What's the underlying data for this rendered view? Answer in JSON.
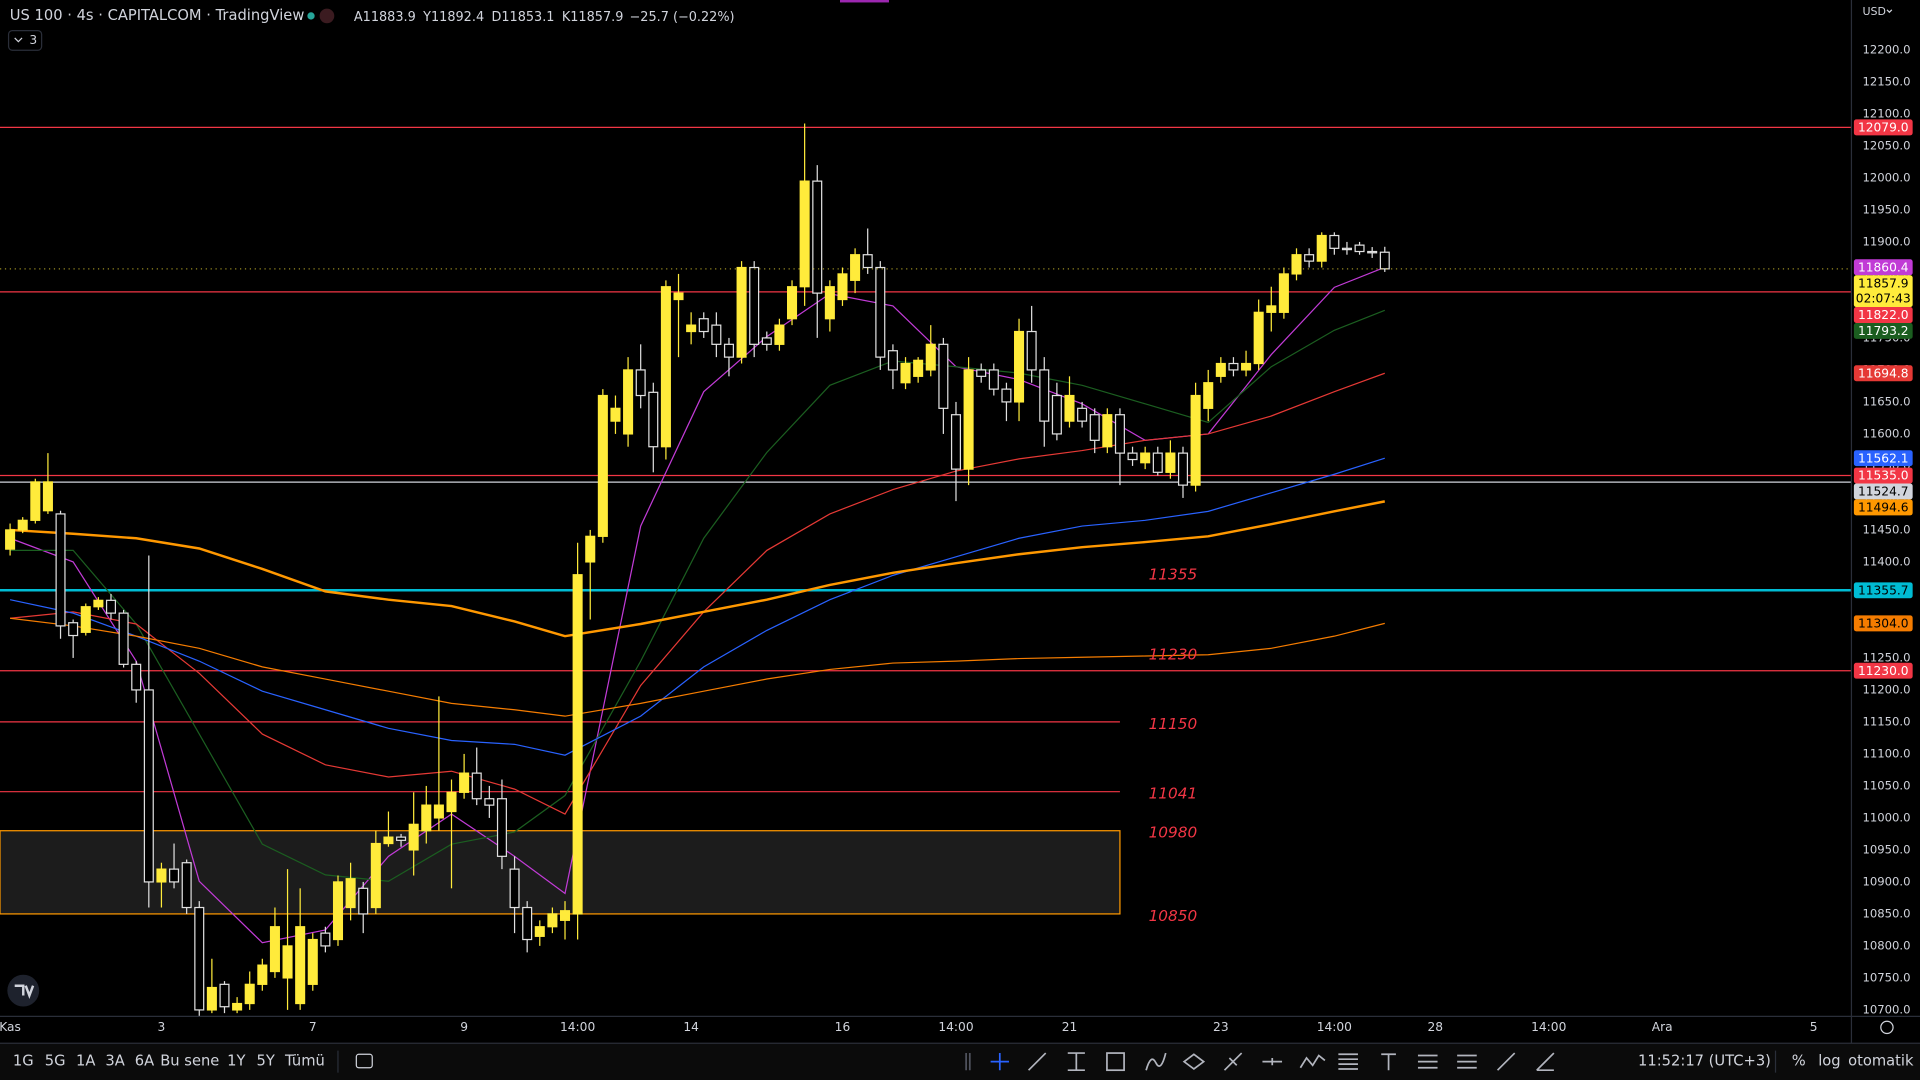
{
  "header": {
    "title": "US 100 · 4s · CAPITALCOM · TradingView",
    "ohlc_letters": [
      "A",
      "Y",
      "D",
      "K"
    ],
    "change": "−25.7 (−0.22%)",
    "indicator_count": "3",
    "currency": "USD"
  },
  "toolbar": {
    "ranges": [
      "1G",
      "5G",
      "1A",
      "3A",
      "6A",
      "Bu sene",
      "1Y",
      "5Y",
      "Tümü"
    ],
    "clock": "11:52:17 (UTC+3)",
    "scale_options": [
      "%",
      "log",
      "otomatik"
    ]
  },
  "chart_data": {
    "type": "candlestick",
    "countdown": "02:07:43",
    "xlim": [
      -0.8,
      146
    ],
    "xticks": [
      {
        "value": 0,
        "label": "Kas"
      },
      {
        "value": 12,
        "label": "3"
      },
      {
        "value": 24,
        "label": "7"
      },
      {
        "value": 36,
        "label": "9"
      },
      {
        "value": 45,
        "label": "14:00"
      },
      {
        "value": 54,
        "label": "14"
      },
      {
        "value": 66,
        "label": "16"
      },
      {
        "value": 75,
        "label": "14:00"
      },
      {
        "value": 84,
        "label": "21"
      },
      {
        "value": 96,
        "label": "23"
      },
      {
        "value": 105,
        "label": "14:00"
      },
      {
        "value": 113,
        "label": "28"
      },
      {
        "value": 122,
        "label": "14:00"
      },
      {
        "value": 131,
        "label": "Ara"
      },
      {
        "value": 143,
        "label": "5"
      }
    ],
    "ylim": [
      10690,
      12278
    ],
    "yticks": [
      {
        "value": 10700,
        "label": "10700.0"
      },
      {
        "value": 10750,
        "label": "10750.0"
      },
      {
        "value": 10800,
        "label": "10800.0"
      },
      {
        "value": 10850,
        "label": "10850.0"
      },
      {
        "value": 10900,
        "label": "10900.0"
      },
      {
        "value": 10950,
        "label": "10950.0"
      },
      {
        "value": 11000,
        "label": "11000.0"
      },
      {
        "value": 11050,
        "label": "11050.0"
      },
      {
        "value": 11100,
        "label": "11100.0"
      },
      {
        "value": 11150,
        "label": "11150.0"
      },
      {
        "value": 11200,
        "label": "11200.0"
      },
      {
        "value": 11250,
        "label": "11250.0"
      },
      {
        "value": 11300,
        "label": "11300.0"
      },
      {
        "value": 11350,
        "label": "11350.0"
      },
      {
        "value": 11400,
        "label": "11400.0"
      },
      {
        "value": 11450,
        "label": "11450.0"
      },
      {
        "value": 11500,
        "label": "11500.0"
      },
      {
        "value": 11550,
        "label": "11550.0"
      },
      {
        "value": 11600,
        "label": "11600.0"
      },
      {
        "value": 11650,
        "label": "11650.0"
      },
      {
        "value": 11700,
        "label": "11700.0"
      },
      {
        "value": 11750,
        "label": "11750.0"
      },
      {
        "value": 11800,
        "label": "11800.0"
      },
      {
        "value": 11850,
        "label": "11850.0"
      },
      {
        "value": 11900,
        "label": "11900.0"
      },
      {
        "value": 11950,
        "label": "11950.0"
      },
      {
        "value": 12000,
        "label": "12000.0"
      },
      {
        "value": 12050,
        "label": "12050.0"
      },
      {
        "value": 12100,
        "label": "12100.0"
      },
      {
        "value": 12150,
        "label": "12150.0"
      },
      {
        "value": 12200,
        "label": "12200.0"
      }
    ],
    "up_color": "#ffeb3b",
    "down_color": "#e0e0e0",
    "ohlc": [
      [
        11420,
        11460,
        11410,
        11450
      ],
      [
        11450,
        11470,
        11445,
        11465
      ],
      [
        11465,
        11530,
        11460,
        11525
      ],
      [
        11480,
        11570,
        11475,
        11525
      ],
      [
        11475,
        11480,
        11280,
        11300
      ],
      [
        11305,
        11310,
        11250,
        11285
      ],
      [
        11290,
        11335,
        11285,
        11330
      ],
      [
        11330,
        11345,
        11325,
        11340
      ],
      [
        11340,
        11350,
        11310,
        11320
      ],
      [
        11320,
        11325,
        11235,
        11240
      ],
      [
        11240,
        11245,
        11180,
        11200
      ],
      [
        11200,
        11410,
        10860,
        10900
      ],
      [
        10900,
        10930,
        10860,
        10920
      ],
      [
        10920,
        10960,
        10890,
        10900
      ],
      [
        10930,
        10935,
        10850,
        10860
      ],
      [
        10860,
        10870,
        10690,
        10700
      ],
      [
        10700,
        10780,
        10695,
        10735
      ],
      [
        10740,
        10745,
        10695,
        10705
      ],
      [
        10700,
        10720,
        10695,
        10710
      ],
      [
        10710,
        10760,
        10700,
        10740
      ],
      [
        10740,
        10780,
        10730,
        10770
      ],
      [
        10760,
        10860,
        10750,
        10830
      ],
      [
        10750,
        10920,
        10700,
        10800
      ],
      [
        10710,
        10890,
        10700,
        10830
      ],
      [
        10740,
        10820,
        10730,
        10810
      ],
      [
        10820,
        10830,
        10790,
        10800
      ],
      [
        10810,
        10910,
        10800,
        10900
      ],
      [
        10860,
        10930,
        10840,
        10905
      ],
      [
        10890,
        10900,
        10820,
        10850
      ],
      [
        10860,
        10980,
        10850,
        10960
      ],
      [
        10960,
        11010,
        10955,
        10970
      ],
      [
        10970,
        10975,
        10955,
        10965
      ],
      [
        10950,
        11040,
        10910,
        10990
      ],
      [
        10980,
        11050,
        10960,
        11020
      ],
      [
        11000,
        11190,
        10980,
        11020
      ],
      [
        11010,
        11060,
        10890,
        11040
      ],
      [
        11040,
        11100,
        11030,
        11070
      ],
      [
        11070,
        11110,
        11020,
        11030
      ],
      [
        11030,
        11050,
        11000,
        11020
      ],
      [
        11030,
        11060,
        10920,
        10940
      ],
      [
        10920,
        10940,
        10820,
        10860
      ],
      [
        10860,
        10870,
        10790,
        10810
      ],
      [
        10815,
        10840,
        10800,
        10830
      ],
      [
        10830,
        10860,
        10820,
        10850
      ],
      [
        10840,
        10870,
        10810,
        10855
      ],
      [
        10850,
        11430,
        10810,
        11380
      ],
      [
        11400,
        11450,
        11310,
        11440
      ],
      [
        11440,
        11670,
        11430,
        11660
      ],
      [
        11620,
        11660,
        11600,
        11640
      ],
      [
        11600,
        11720,
        11580,
        11700
      ],
      [
        11700,
        11740,
        11640,
        11660
      ],
      [
        11665,
        11680,
        11540,
        11580
      ],
      [
        11580,
        11840,
        11560,
        11830
      ],
      [
        11810,
        11850,
        11720,
        11820
      ],
      [
        11760,
        11790,
        11740,
        11770
      ],
      [
        11780,
        11790,
        11750,
        11760
      ],
      [
        11770,
        11790,
        11720,
        11740
      ],
      [
        11740,
        11750,
        11690,
        11720
      ],
      [
        11720,
        11870,
        11710,
        11860
      ],
      [
        11860,
        11870,
        11720,
        11740
      ],
      [
        11750,
        11760,
        11730,
        11740
      ],
      [
        11740,
        11780,
        11730,
        11770
      ],
      [
        11780,
        11840,
        11770,
        11830
      ],
      [
        11830,
        12085,
        11800,
        11995
      ],
      [
        11995,
        12020,
        11750,
        11820
      ],
      [
        11780,
        11840,
        11760,
        11830
      ],
      [
        11810,
        11860,
        11800,
        11850
      ],
      [
        11840,
        11890,
        11820,
        11880
      ],
      [
        11880,
        11921,
        11850,
        11860
      ],
      [
        11860,
        11870,
        11700,
        11720
      ],
      [
        11730,
        11740,
        11670,
        11700
      ],
      [
        11680,
        11720,
        11670,
        11710
      ],
      [
        11690,
        11720,
        11680,
        11715
      ],
      [
        11700,
        11770,
        11690,
        11740
      ],
      [
        11740,
        11750,
        11600,
        11640
      ],
      [
        11630,
        11650,
        11495,
        11545
      ],
      [
        11545,
        11720,
        11520,
        11700
      ],
      [
        11700,
        11710,
        11680,
        11690
      ],
      [
        11700,
        11710,
        11660,
        11670
      ],
      [
        11670,
        11680,
        11620,
        11650
      ],
      [
        11650,
        11780,
        11620,
        11760
      ],
      [
        11760,
        11800,
        11680,
        11700
      ],
      [
        11700,
        11720,
        11580,
        11620
      ],
      [
        11660,
        11680,
        11590,
        11600
      ],
      [
        11620,
        11690,
        11610,
        11660
      ],
      [
        11640,
        11650,
        11610,
        11620
      ],
      [
        11630,
        11640,
        11570,
        11590
      ],
      [
        11580,
        11640,
        11570,
        11630
      ],
      [
        11630,
        11640,
        11520,
        11570
      ],
      [
        11570,
        11580,
        11550,
        11560
      ],
      [
        11555,
        11580,
        11545,
        11570
      ],
      [
        11570,
        11580,
        11535,
        11540
      ],
      [
        11540,
        11590,
        11530,
        11570
      ],
      [
        11570,
        11580,
        11500,
        11520
      ],
      [
        11520,
        11680,
        11510,
        11660
      ],
      [
        11640,
        11700,
        11620,
        11680
      ],
      [
        11690,
        11720,
        11680,
        11710
      ],
      [
        11710,
        11720,
        11690,
        11700
      ],
      [
        11700,
        11730,
        11690,
        11710
      ],
      [
        11710,
        11810,
        11700,
        11790
      ],
      [
        11790,
        11830,
        11760,
        11800
      ],
      [
        11790,
        11860,
        11780,
        11850
      ],
      [
        11850,
        11890,
        11840,
        11880
      ],
      [
        11880,
        11890,
        11860,
        11870
      ],
      [
        11870,
        11915,
        11860,
        11910
      ],
      [
        11910,
        11915,
        11880,
        11890
      ],
      [
        11890,
        11900,
        11880,
        11888
      ],
      [
        11895,
        11900,
        11880,
        11885
      ],
      [
        11885,
        11892,
        11875,
        11883
      ],
      [
        11883.9,
        11892.4,
        11853.1,
        11857.9
      ]
    ],
    "series": [
      {
        "color": "#c13bd6",
        "badge_label": "11860.4",
        "x": [
          0,
          5,
          10,
          15,
          20,
          25,
          30,
          35,
          40,
          44,
          50,
          55,
          60,
          65,
          70,
          75,
          80,
          85,
          90,
          95,
          100,
          105,
          109
        ],
        "values": [
          11437,
          11400,
          11245,
          10901,
          10805,
          10825,
          10940,
          11006,
          10940,
          10882,
          11456,
          11666,
          11752,
          11819,
          11800,
          11705,
          11685,
          11647,
          11590,
          11600,
          11724,
          11829,
          11860.4
        ]
      },
      {
        "color": "#1b5e20",
        "badge_label": "11793.2",
        "x": [
          0,
          5,
          10,
          15,
          20,
          25,
          30,
          35,
          40,
          44,
          50,
          55,
          60,
          65,
          70,
          75,
          80,
          85,
          90,
          95,
          100,
          105,
          109
        ],
        "values": [
          11418,
          11418,
          11303,
          11131,
          10959,
          10911,
          10901,
          10959,
          10978,
          11035,
          11245,
          11437,
          11571,
          11676,
          11714,
          11705,
          11695,
          11676,
          11647,
          11618,
          11705,
          11762,
          11793.2
        ]
      },
      {
        "color": "#e53935",
        "badge_label": "11694.8",
        "x": [
          0,
          5,
          10,
          15,
          20,
          25,
          30,
          35,
          40,
          44,
          50,
          55,
          60,
          65,
          70,
          75,
          80,
          85,
          90,
          95,
          100,
          105,
          109
        ],
        "values": [
          11312,
          11322,
          11303,
          11226,
          11131,
          11083,
          11064,
          11073,
          11045,
          11006,
          11207,
          11322,
          11418,
          11475,
          11513,
          11542,
          11561,
          11574,
          11590,
          11600,
          11628,
          11666,
          11694.8
        ]
      },
      {
        "color": "#2962ff",
        "badge_label": "11562.1",
        "x": [
          0,
          5,
          10,
          15,
          20,
          25,
          30,
          35,
          40,
          44,
          50,
          55,
          60,
          65,
          70,
          75,
          80,
          85,
          90,
          95,
          100,
          105,
          109
        ],
        "values": [
          11341,
          11320,
          11284,
          11245,
          11198,
          11169,
          11140,
          11121,
          11115,
          11098,
          11159,
          11236,
          11293,
          11341,
          11379,
          11408,
          11437,
          11456,
          11465,
          11479,
          11508,
          11537,
          11562.1
        ]
      },
      {
        "color": "#ff9800",
        "bold": true,
        "badge_label": "11494.6",
        "x": [
          0,
          5,
          10,
          15,
          20,
          25,
          30,
          35,
          40,
          44,
          50,
          55,
          60,
          65,
          70,
          75,
          80,
          85,
          90,
          95,
          100,
          105,
          109
        ],
        "values": [
          11450,
          11444,
          11437,
          11421,
          11389,
          11354,
          11341,
          11331,
          11307,
          11284,
          11303,
          11322,
          11341,
          11364,
          11383,
          11398,
          11412,
          11423,
          11431,
          11440,
          11459,
          11479,
          11494.6
        ]
      },
      {
        "color": "#f57c00",
        "badge_label": "11304.0",
        "x": [
          0,
          5,
          10,
          15,
          20,
          25,
          30,
          35,
          40,
          44,
          50,
          55,
          60,
          65,
          70,
          75,
          80,
          85,
          90,
          95,
          100,
          105,
          109
        ],
        "values": [
          11312,
          11300,
          11284,
          11265,
          11236,
          11217,
          11198,
          11179,
          11169,
          11159,
          11179,
          11198,
          11217,
          11232,
          11242,
          11245,
          11249,
          11251,
          11253,
          11255,
          11265,
          11284,
          11304
        ]
      }
    ],
    "levels": [
      {
        "value": 12079,
        "label": "12079.0",
        "color": "#f23645"
      },
      {
        "value": 11822,
        "label": "11822.0",
        "color": "#f23645"
      },
      {
        "value": 11535,
        "label": "11535.0",
        "color": "#f23645"
      },
      {
        "value": 11524.7,
        "label": "11524.7",
        "color": "#d1d4dc"
      },
      {
        "value": 11355.7,
        "label": "11355.7",
        "color": "#00bcd4"
      },
      {
        "value": 11230,
        "label": "11230.0",
        "color": "#f23645"
      },
      {
        "value": 11150,
        "color": "#f23645",
        "end": 88
      },
      {
        "value": 11041,
        "color": "#f23645",
        "end": 88
      }
    ],
    "zone": {
      "top": 10980,
      "bottom": 10850,
      "end": 88,
      "color": "#ff9800"
    },
    "annotations": [
      11355,
      11230,
      11150,
      11041,
      10980,
      10850
    ]
  }
}
